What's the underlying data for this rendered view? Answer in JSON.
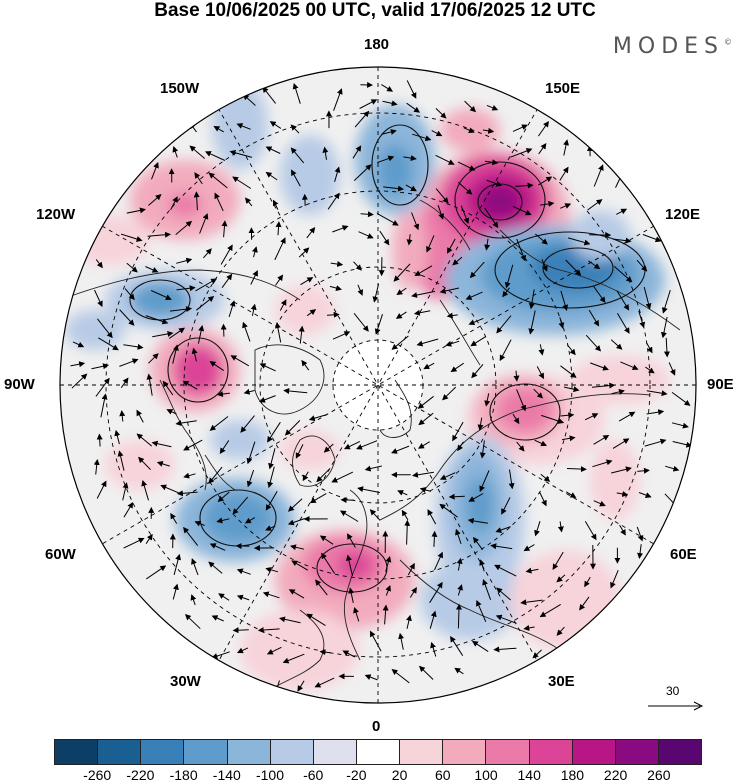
{
  "title": "Base 10/06/2025 00 UTC, valid 17/06/2025 12 UTC",
  "brand": "MODES",
  "brand_mark": "©",
  "longitude_labels": {
    "n180": "180",
    "e150": "150E",
    "w150": "150W",
    "e120": "120E",
    "w120": "120W",
    "e90": "90E",
    "w90": "90W",
    "e60": "60E",
    "w60": "60W",
    "e30": "30E",
    "w30": "30W",
    "s0": "0"
  },
  "reference_vector": {
    "label": "30"
  },
  "colorbar": {
    "ticks": [
      "-260",
      "-220",
      "-180",
      "-140",
      "-100",
      "-60",
      "-20",
      "20",
      "60",
      "100",
      "140",
      "180",
      "220",
      "260"
    ],
    "colors": [
      "#0d3f66",
      "#1a5f92",
      "#3a80b8",
      "#5f9ccb",
      "#8cb5da",
      "#b7cbe6",
      "#dedfef",
      "#ffffff",
      "#f7d3da",
      "#f2abbd",
      "#ea7aa8",
      "#dc4597",
      "#b81586",
      "#8a0a7f",
      "#5a0670"
    ]
  },
  "anomaly_centers": [
    {
      "name": "east-siberia-high",
      "value": 240,
      "color": "#8a0a7f"
    },
    {
      "name": "central-siberia-low",
      "value": -200,
      "color": "#3a80b8"
    },
    {
      "name": "west-siberia-high",
      "value": 160,
      "color": "#dc4597"
    },
    {
      "name": "europe-low",
      "value": -140,
      "color": "#5f9ccb"
    },
    {
      "name": "west-europe-high",
      "value": 150,
      "color": "#dc4597"
    },
    {
      "name": "atlantic-low",
      "value": -160,
      "color": "#5f9ccb"
    },
    {
      "name": "hudson-bay-high",
      "value": 170,
      "color": "#dc4597"
    },
    {
      "name": "canada-west-low",
      "value": -120,
      "color": "#8cb5da"
    },
    {
      "name": "north-pacific-low",
      "value": -120,
      "color": "#8cb5da"
    }
  ]
}
